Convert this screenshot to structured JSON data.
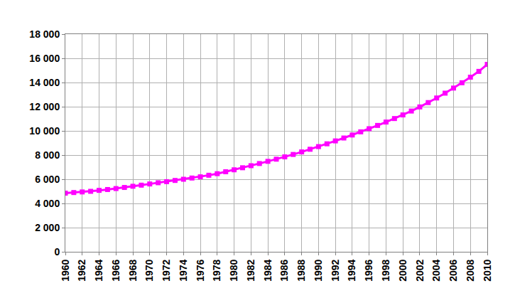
{
  "chart_data": {
    "type": "line",
    "x": [
      1960,
      1961,
      1962,
      1963,
      1964,
      1965,
      1966,
      1967,
      1968,
      1969,
      1970,
      1971,
      1972,
      1973,
      1974,
      1975,
      1976,
      1977,
      1978,
      1979,
      1980,
      1981,
      1982,
      1983,
      1984,
      1985,
      1986,
      1987,
      1988,
      1989,
      1990,
      1991,
      1992,
      1993,
      1994,
      1995,
      1996,
      1997,
      1998,
      1999,
      2000,
      2001,
      2002,
      2003,
      2004,
      2005,
      2006,
      2007,
      2008,
      2009,
      2010
    ],
    "values": [
      4850,
      4900,
      4950,
      5000,
      5080,
      5150,
      5230,
      5320,
      5420,
      5510,
      5610,
      5710,
      5800,
      5900,
      6000,
      6100,
      6200,
      6330,
      6460,
      6620,
      6780,
      6950,
      7120,
      7300,
      7480,
      7660,
      7850,
      8050,
      8260,
      8480,
      8700,
      8930,
      9170,
      9410,
      9660,
      9920,
      10180,
      10450,
      10730,
      11020,
      11320,
      11640,
      11980,
      12340,
      12720,
      13120,
      13540,
      13980,
      14440,
      14920,
      15500
    ],
    "color": "#ff00ff",
    "marker": "square",
    "xlim": [
      1960,
      2010
    ],
    "xticks": [
      1960,
      1962,
      1964,
      1966,
      1968,
      1970,
      1972,
      1974,
      1976,
      1978,
      1980,
      1982,
      1984,
      1986,
      1988,
      1990,
      1992,
      1994,
      1996,
      1998,
      2000,
      2002,
      2004,
      2006,
      2008,
      2010
    ],
    "ylim": [
      0,
      18000
    ],
    "yticks": [
      0,
      {
        "value": 2000,
        "label": "2 000"
      },
      {
        "value": 4000,
        "label": "4 000"
      },
      {
        "value": 6000,
        "label": "6 000"
      },
      {
        "value": 8000,
        "label": "8 000"
      },
      {
        "value": 10000,
        "label": "10 000"
      },
      {
        "value": 12000,
        "label": "12 000"
      },
      {
        "value": 14000,
        "label": "14 000"
      },
      {
        "value": 16000,
        "label": "16 000"
      },
      {
        "value": 18000,
        "label": "18 000"
      }
    ],
    "grid": true
  }
}
